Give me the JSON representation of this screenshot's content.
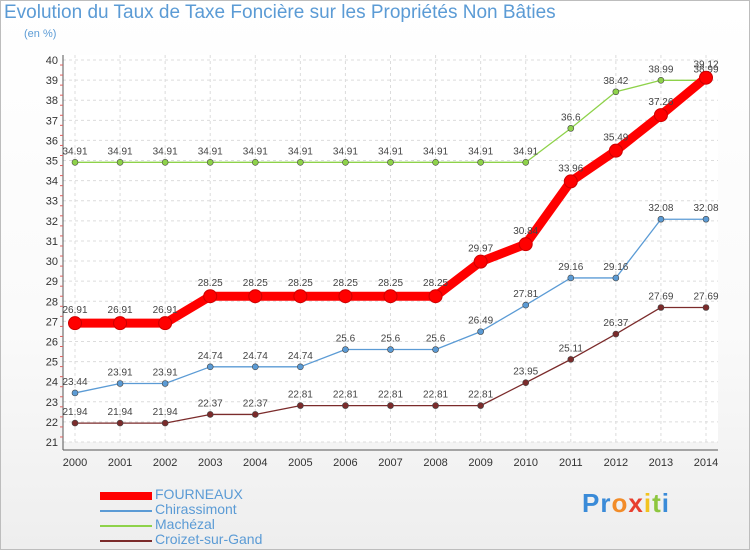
{
  "chart_data": {
    "type": "line",
    "title": "Evolution du Taux de Taxe Foncière sur les Propriétés Non Bâties",
    "ylabel": "(en %)",
    "xlabel": "",
    "ylim": [
      21,
      40
    ],
    "yticks": [
      "21",
      "22",
      "23",
      "24",
      "25",
      "26",
      "27",
      "28",
      "29",
      "30",
      "31",
      "32",
      "33",
      "34",
      "35",
      "36",
      "37",
      "38",
      "39",
      "40"
    ],
    "x": [
      "2000",
      "2001",
      "2002",
      "2003",
      "2004",
      "2005",
      "2006",
      "2007",
      "2008",
      "2009",
      "2010",
      "2011",
      "2012",
      "2013",
      "2014"
    ],
    "series": [
      {
        "name": "FOURNEAUX",
        "color": "#ff0000",
        "values": [
          26.91,
          26.91,
          26.91,
          28.25,
          28.25,
          28.25,
          28.25,
          28.25,
          28.25,
          29.97,
          30.84,
          33.96,
          35.49,
          37.26,
          39.12
        ],
        "labels": [
          "26.91",
          "26.91",
          "26.91",
          "28.25",
          "28.25",
          "28.25",
          "28.25",
          "28.25",
          "28.25",
          "29.97",
          "30.84",
          "33.96",
          "35.49",
          "37.26",
          "39.12"
        ]
      },
      {
        "name": "Chirassimont",
        "color": "#5b9bd5",
        "values": [
          23.44,
          23.91,
          23.91,
          24.74,
          24.74,
          24.74,
          25.6,
          25.6,
          25.6,
          26.49,
          27.81,
          29.16,
          29.16,
          32.08,
          32.08
        ],
        "labels": [
          "23.44",
          "23.91",
          "23.91",
          "24.74",
          "24.74",
          "24.74",
          "25.6",
          "25.6",
          "25.6",
          "26.49",
          "27.81",
          "29.16",
          "29.16",
          "32.08",
          "32.08"
        ]
      },
      {
        "name": "Machézal",
        "color": "#8ed24a",
        "values": [
          34.91,
          34.91,
          34.91,
          34.91,
          34.91,
          34.91,
          34.91,
          34.91,
          34.91,
          34.91,
          34.91,
          36.6,
          38.42,
          38.99,
          38.99
        ],
        "labels": [
          "34.91",
          "34.91",
          "34.91",
          "34.91",
          "34.91",
          "34.91",
          "34.91",
          "34.91",
          "34.91",
          "34.91",
          "34.91",
          "36.6",
          "38.42",
          "38.99",
          "38.99"
        ]
      },
      {
        "name": "Croizet-sur-Gand",
        "color": "#7b2b2b",
        "values": [
          21.94,
          21.94,
          21.94,
          22.37,
          22.37,
          22.81,
          22.81,
          22.81,
          22.81,
          22.81,
          23.95,
          25.11,
          26.37,
          27.69,
          27.69
        ],
        "labels": [
          "21.94",
          "21.94",
          "21.94",
          "22.37",
          "22.37",
          "22.81",
          "22.81",
          "22.81",
          "22.81",
          "22.81",
          "23.95",
          "25.11",
          "26.37",
          "27.69",
          "27.69"
        ]
      }
    ],
    "legend_position": "bottom-left"
  },
  "logo": {
    "letters": [
      "P",
      "r",
      "o",
      "x",
      "i",
      "t",
      "i"
    ],
    "colors": [
      "#3a8bd8",
      "#3a8bd8",
      "#f28c28",
      "#e83f2f",
      "#f2c31e",
      "#8dc63f",
      "#3a8bd8"
    ]
  }
}
